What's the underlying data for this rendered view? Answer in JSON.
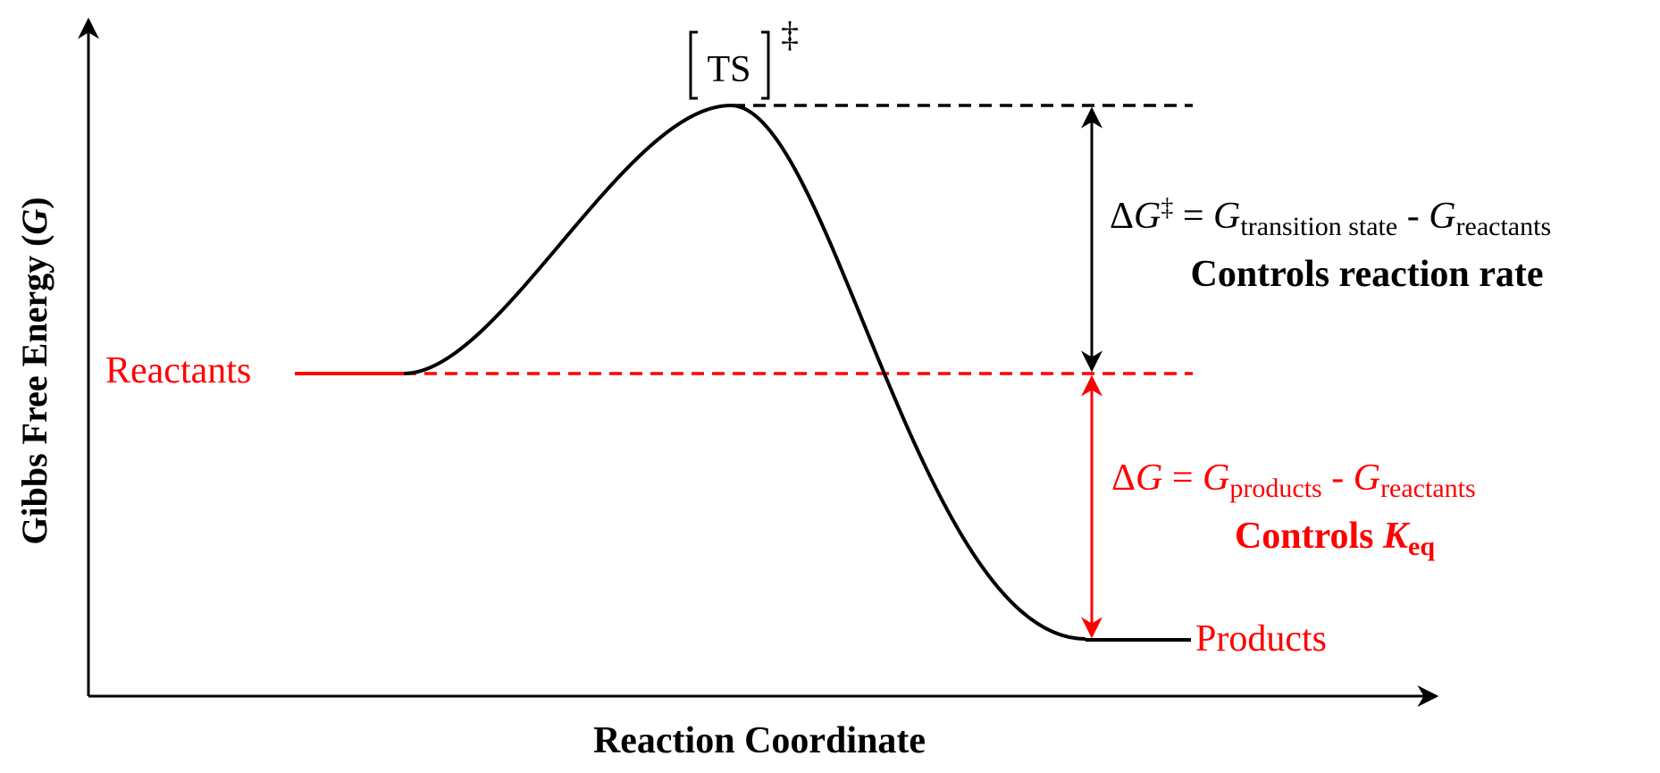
{
  "axes": {
    "y_label_prefix": "Gibbs Free Energy (",
    "y_label_var": "G",
    "y_label_suffix": ")",
    "x_label": "Reaction Coordinate"
  },
  "states": {
    "reactants": "Reactants",
    "products": "Products",
    "ts": "TS",
    "ts_symbol": "‡"
  },
  "activation": {
    "delta": "Δ",
    "g": "G",
    "dagger": "‡",
    "eq": " = ",
    "g_ts": "G",
    "sub_ts": "transition state",
    "minus": " - ",
    "g_r": "G",
    "sub_r": "reactants",
    "caption": "Controls reaction rate"
  },
  "reaction": {
    "delta": "Δ",
    "g": "G",
    "eq": " = ",
    "g_p": "G",
    "sub_p": "products",
    "minus": " - ",
    "g_r": "G",
    "sub_r": "reactants",
    "caption_prefix": "Controls ",
    "caption_k": "K",
    "caption_sub": "eq"
  },
  "colors": {
    "black": "#000000",
    "red": "#ff0000"
  }
}
